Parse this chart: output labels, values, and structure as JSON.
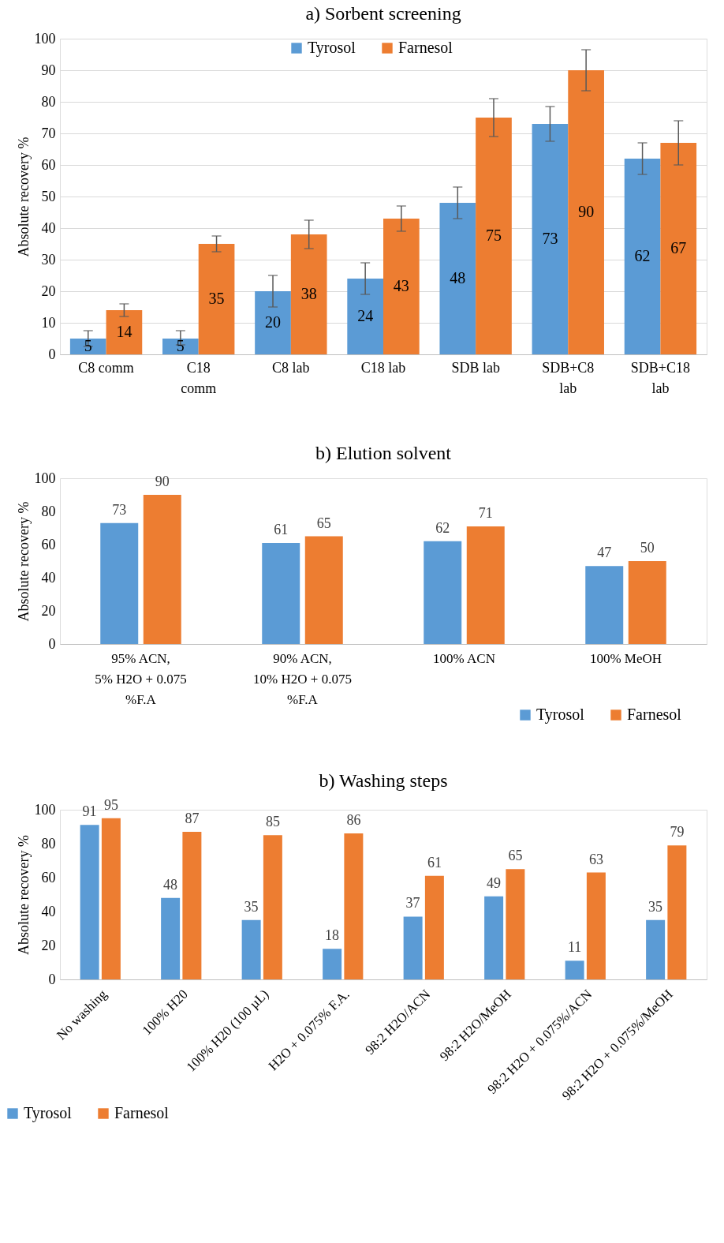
{
  "chart_data": [
    {
      "type": "bar",
      "title": "a) Sorbent screening",
      "ylabel": "Absolute recovery %",
      "categories": [
        "C8 comm",
        "C18\ncomm",
        "C8 lab",
        "C18 lab",
        "SDB lab",
        "SDB+C8\nlab",
        "SDB+C18\nlab"
      ],
      "ylim": [
        0,
        100
      ],
      "yticks": [
        0,
        10,
        20,
        30,
        40,
        50,
        60,
        70,
        80,
        90,
        100
      ],
      "grid": "y",
      "legend": "top",
      "data_labels": true,
      "series": [
        {
          "name": "Tyrosol",
          "color": "#5b9bd5",
          "values": [
            5,
            5,
            20,
            24,
            48,
            73,
            62
          ],
          "errors": [
            [
              2.5,
              7.5
            ],
            [
              3,
              7.5
            ],
            [
              15,
              25
            ],
            [
              19,
              29
            ],
            [
              43,
              53
            ],
            [
              67.5,
              78.5
            ],
            [
              57,
              67
            ]
          ]
        },
        {
          "name": "Farnesol",
          "color": "#ed7d31",
          "values": [
            14,
            35,
            38,
            43,
            75,
            90,
            67
          ],
          "errors": [
            [
              12,
              16
            ],
            [
              32.5,
              37.5
            ],
            [
              33.5,
              42.5
            ],
            [
              39,
              47
            ],
            [
              69,
              81
            ],
            [
              83.5,
              96.5
            ],
            [
              60,
              74
            ]
          ]
        }
      ]
    },
    {
      "type": "bar",
      "title": "b) Elution solvent",
      "ylabel": "Absolute recovery %",
      "categories": [
        "95% ACN,\n5% H2O + 0.075\n%F.A",
        "90% ACN,\n10% H2O + 0.075\n%F.A",
        "100% ACN",
        "100% MeOH"
      ],
      "ylim": [
        0,
        100
      ],
      "yticks": [
        0,
        20,
        40,
        60,
        80,
        100
      ],
      "legend": "bottom right",
      "data_labels": true,
      "series": [
        {
          "name": "Tyrosol",
          "color": "#5b9bd5",
          "values": [
            73,
            61,
            62,
            47
          ]
        },
        {
          "name": "Farnesol",
          "color": "#ed7d31",
          "values": [
            90,
            65,
            71,
            50
          ]
        }
      ]
    },
    {
      "type": "bar",
      "title": "b) Washing steps",
      "ylabel": "Absolute recovery %",
      "categories": [
        "No washing",
        "100% H20",
        "100% H20 (100 µL)",
        "H2O + 0.075% F.A.",
        "98:2 H2O/ACN",
        "98:2 H2O/MeOH",
        "98:2 H2O + 0.075%/ACN",
        "98:2 H2O + 0.075%/MeOH"
      ],
      "ylim": [
        0,
        100
      ],
      "yticks": [
        0,
        20,
        40,
        60,
        80,
        100
      ],
      "legend": "bottom left",
      "data_labels": true,
      "series": [
        {
          "name": "Tyrosol",
          "color": "#5b9bd5",
          "values": [
            91,
            48,
            35,
            18,
            37,
            49,
            11,
            35
          ]
        },
        {
          "name": "Farnesol",
          "color": "#ed7d31",
          "values": [
            95,
            87,
            85,
            86,
            61,
            65,
            63,
            79
          ]
        }
      ]
    }
  ]
}
